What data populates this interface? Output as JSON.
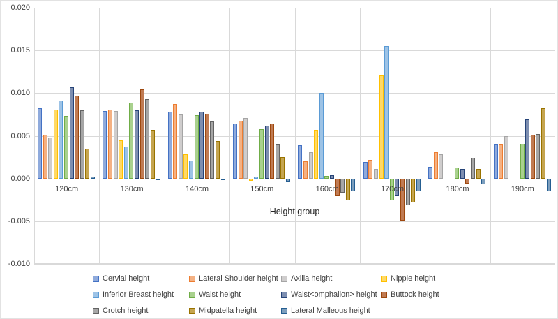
{
  "chart_data": {
    "type": "bar",
    "title": "",
    "xlabel": "Height group",
    "ylabel": "",
    "ylim": [
      -0.01,
      0.02
    ],
    "grid": true,
    "legend_position": "bottom",
    "ytick_labels": [
      "0.020",
      "0.015",
      "0.010",
      "0.005",
      "0.000",
      "-0.005",
      "-0.010"
    ],
    "yticks": [
      0.02,
      0.015,
      0.01,
      0.005,
      0.0,
      -0.005,
      -0.01
    ],
    "categories": [
      "120cm",
      "130cm",
      "140cm",
      "150cm",
      "160cm",
      "170cm",
      "180cm",
      "190cm"
    ],
    "series": [
      {
        "name": "Cervial height",
        "fill": "#8FAADC",
        "border": "#4472C4",
        "values": [
          0.0082,
          0.0079,
          0.0078,
          0.0064,
          0.0039,
          0.0019,
          0.0014,
          0.004
        ]
      },
      {
        "name": "Lateral Shoulder height",
        "fill": "#F4B183",
        "border": "#ED7D31",
        "values": [
          0.0051,
          0.0081,
          0.0087,
          0.0068,
          0.002,
          0.0022,
          0.0031,
          0.004
        ]
      },
      {
        "name": "Axilla height",
        "fill": "#CFCDCD",
        "border": "#A5A5A5",
        "values": [
          0.0048,
          0.0079,
          0.0075,
          0.0071,
          0.0031,
          0.0011,
          0.0028,
          0.005
        ]
      },
      {
        "name": "Nipple height",
        "fill": "#FFD966",
        "border": "#FFC000",
        "values": [
          0.0081,
          0.0045,
          0.0028,
          -0.0003,
          0.0057,
          0.0121,
          0.0,
          0.0
        ]
      },
      {
        "name": "Inferior Breast height",
        "fill": "#9DC3E6",
        "border": "#5B9BD5",
        "values": [
          0.0091,
          0.0037,
          0.0021,
          0.0002,
          0.01,
          0.0155,
          0.0,
          0.0
        ]
      },
      {
        "name": "Waist height",
        "fill": "#A9D18E",
        "border": "#70AD47",
        "values": [
          0.0073,
          0.0089,
          0.0074,
          0.0058,
          0.0003,
          -0.0026,
          0.0013,
          0.0041
        ]
      },
      {
        "name": "Waist<omphalion> height",
        "fill": "#7D8EB0",
        "border": "#264478",
        "values": [
          0.0107,
          0.008,
          0.0078,
          0.0062,
          0.0004,
          -0.0021,
          0.0011,
          0.0069
        ]
      },
      {
        "name": "Buttock height",
        "fill": "#C07B53",
        "border": "#9E480E",
        "values": [
          0.0097,
          0.0104,
          0.0076,
          0.0064,
          -0.0021,
          -0.0049,
          -0.0006,
          0.0051
        ]
      },
      {
        "name": "Crotch height",
        "fill": "#A6A6A6",
        "border": "#636363",
        "values": [
          0.008,
          0.0093,
          0.0067,
          0.004,
          -0.0017,
          -0.0031,
          0.0024,
          0.0052
        ]
      },
      {
        "name": "Midpatella height",
        "fill": "#C5A550",
        "border": "#997300",
        "values": [
          0.0035,
          0.0057,
          0.0044,
          0.0025,
          -0.0026,
          -0.0028,
          0.0011,
          0.0082
        ]
      },
      {
        "name": "Lateral Malleous height",
        "fill": "#7C9EBD",
        "border": "#255E91",
        "values": [
          0.0002,
          -0.0002,
          -0.0002,
          -0.0004,
          -0.0015,
          -0.0015,
          -0.0007,
          -0.0015
        ]
      }
    ]
  }
}
